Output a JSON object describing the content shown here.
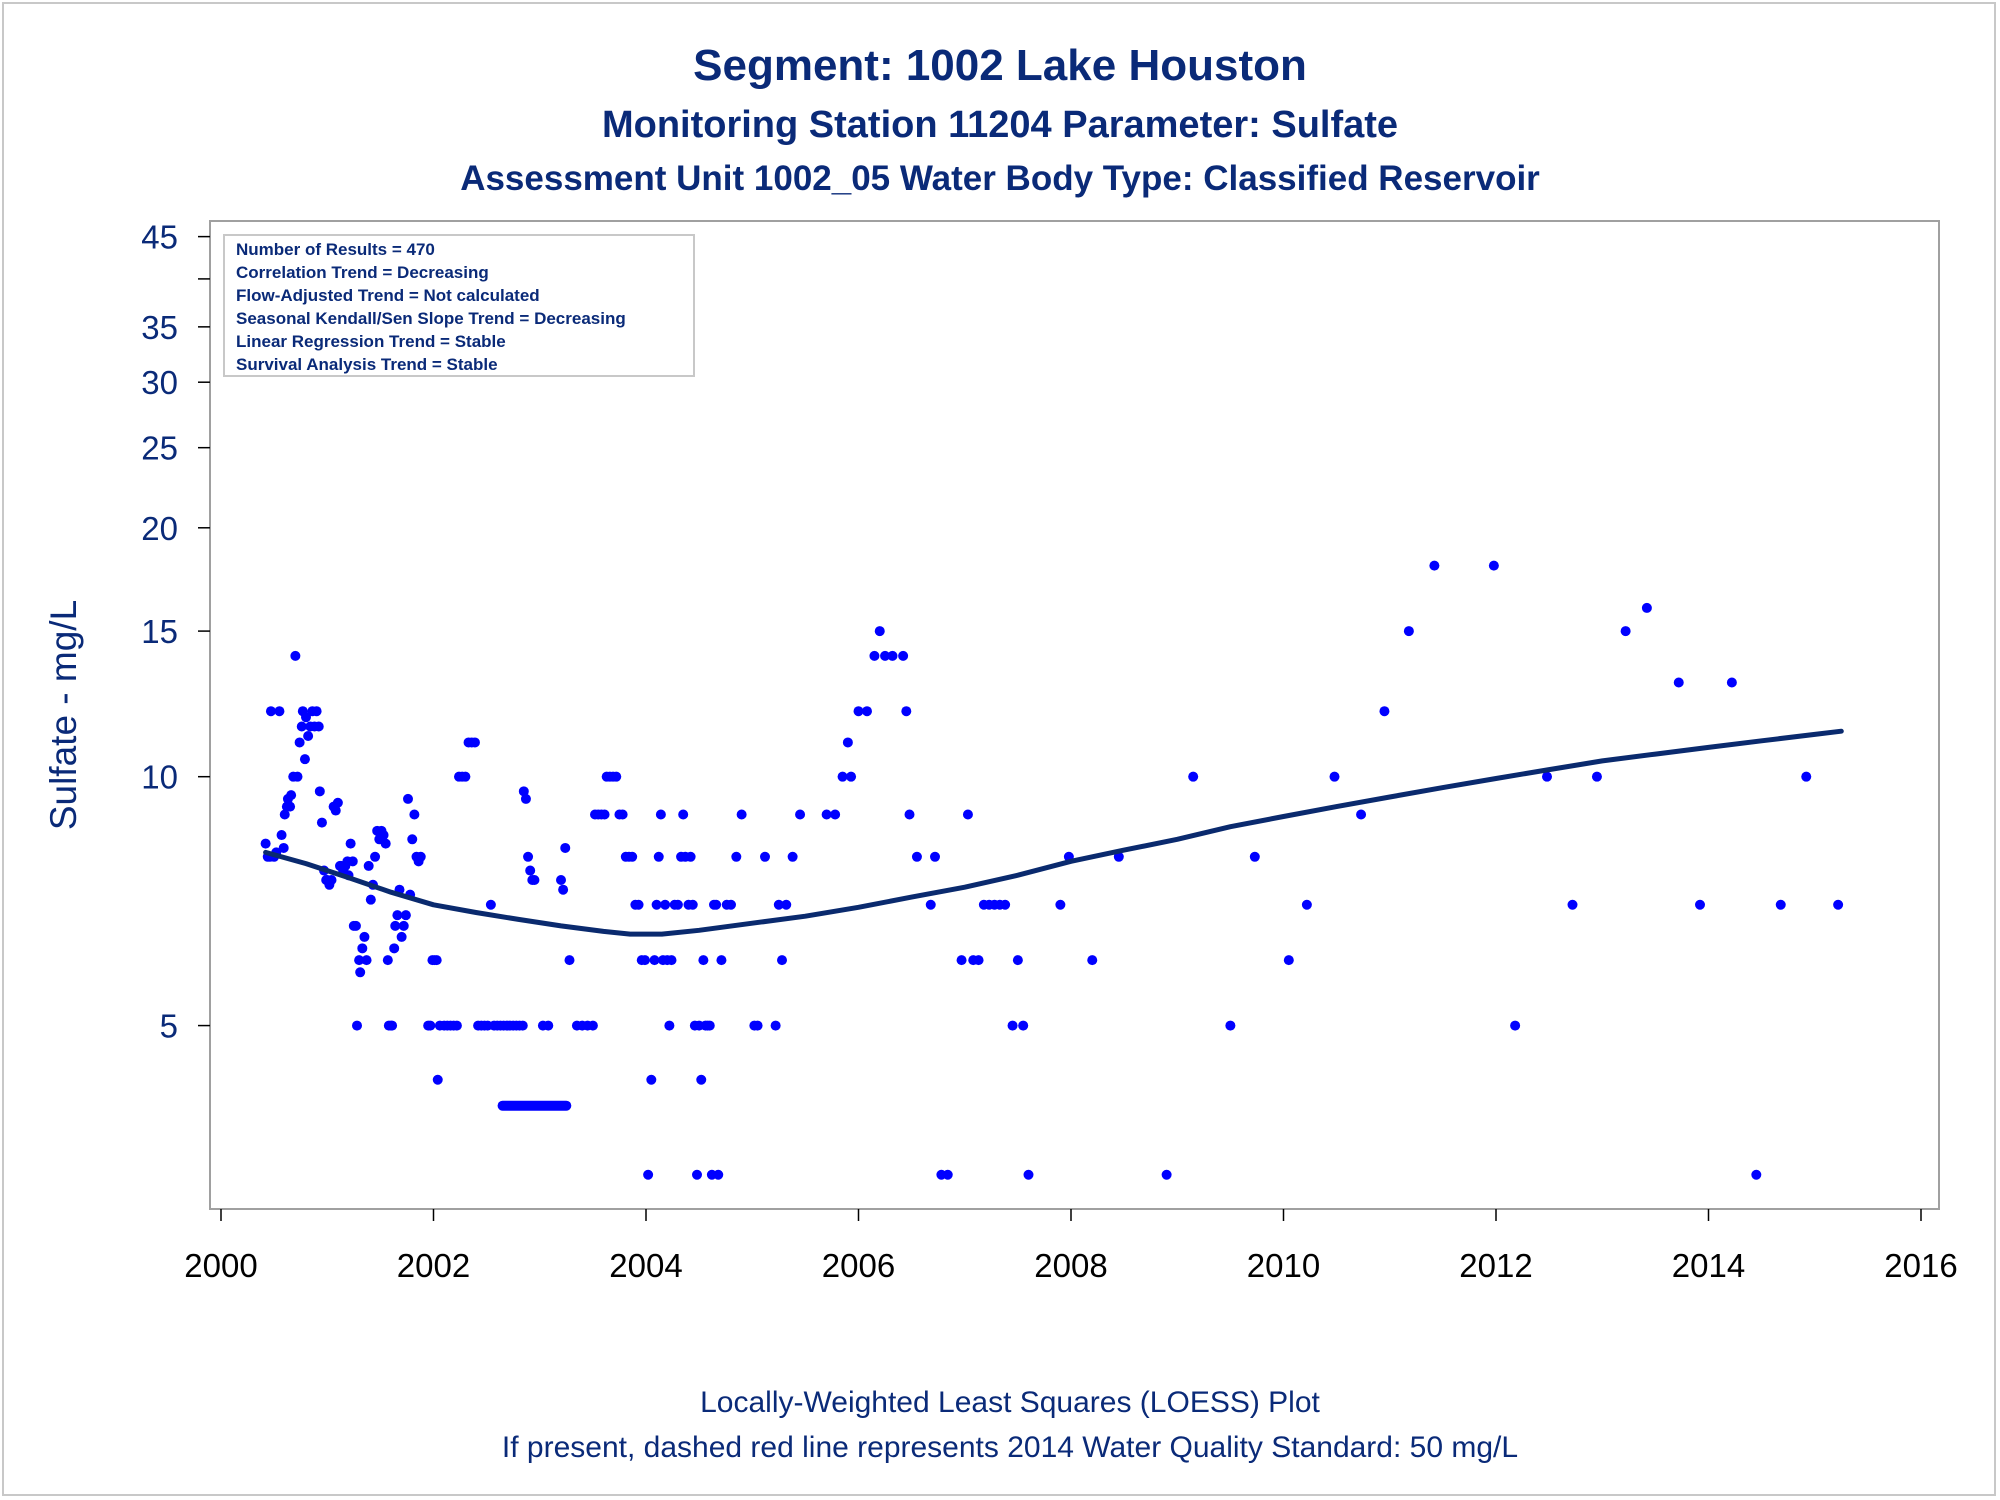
{
  "titles": {
    "line1": "Segment: 1002  Lake Houston",
    "line2": "Monitoring Station 11204 Parameter: Sulfate",
    "line3": "Assessment Unit 1002_05   Water Body Type: Classified Reservoir"
  },
  "footer": {
    "line1": "Locally-Weighted Least Squares (LOESS) Plot",
    "line2": "If present, dashed red line represents 2014 Water Quality Standard: 50    mg/L"
  },
  "stats": [
    "Number of Results = 470",
    "Correlation Trend = Decreasing",
    "Flow-Adjusted Trend = Not calculated",
    "Seasonal Kendall/Sen Slope Trend = Decreasing",
    "Linear Regression Trend = Stable",
    "Survival Analysis Trend = Stable"
  ],
  "colors": {
    "points": "#0000ff",
    "loess": "#0a2a6e",
    "text": "#0a2a78",
    "axis": "#a0a0a0"
  },
  "chart_data": {
    "type": "scatter",
    "ylabel": "Sulfate - mg/L",
    "xlabel": "",
    "yscale": "log",
    "xlim": [
      2000,
      2016
    ],
    "ylim": [
      3,
      47
    ],
    "xticks": [
      2000,
      2002,
      2004,
      2006,
      2008,
      2010,
      2012,
      2014,
      2016
    ],
    "yticks": [
      5,
      10,
      15,
      20,
      25,
      30,
      35,
      45
    ],
    "ytick_labels": [
      "5",
      "10",
      "15",
      "20",
      "25",
      "30",
      "35",
      "45"
    ],
    "yminor_ticks": [
      40
    ],
    "legend": "top-left inset",
    "grid": false,
    "points": [
      [
        2000.42,
        8.3
      ],
      [
        2000.44,
        8.0
      ],
      [
        2000.46,
        8.0
      ],
      [
        2000.47,
        12.0
      ],
      [
        2000.5,
        8.0
      ],
      [
        2000.52,
        8.1
      ],
      [
        2000.55,
        12.0
      ],
      [
        2000.57,
        8.5
      ],
      [
        2000.59,
        8.2
      ],
      [
        2000.6,
        9.0
      ],
      [
        2000.62,
        9.2
      ],
      [
        2000.63,
        9.4
      ],
      [
        2000.65,
        9.2
      ],
      [
        2000.66,
        9.5
      ],
      [
        2000.68,
        10.0
      ],
      [
        2000.7,
        14.0
      ],
      [
        2000.72,
        10.0
      ],
      [
        2000.74,
        11.0
      ],
      [
        2000.76,
        11.5
      ],
      [
        2000.77,
        12.0
      ],
      [
        2000.79,
        10.5
      ],
      [
        2000.8,
        11.8
      ],
      [
        2000.82,
        11.2
      ],
      [
        2000.84,
        11.5
      ],
      [
        2000.86,
        12.0
      ],
      [
        2000.88,
        11.5
      ],
      [
        2000.9,
        12.0
      ],
      [
        2000.92,
        11.5
      ],
      [
        2000.93,
        9.6
      ],
      [
        2000.95,
        8.8
      ],
      [
        2000.97,
        7.7
      ],
      [
        2000.99,
        7.5
      ],
      [
        2001.0,
        7.5
      ],
      [
        2001.02,
        7.4
      ],
      [
        2001.04,
        7.5
      ],
      [
        2001.06,
        9.2
      ],
      [
        2001.08,
        9.1
      ],
      [
        2001.1,
        9.3
      ],
      [
        2001.12,
        7.8
      ],
      [
        2001.13,
        7.8
      ],
      [
        2001.15,
        7.7
      ],
      [
        2001.17,
        7.8
      ],
      [
        2001.19,
        7.9
      ],
      [
        2001.2,
        7.6
      ],
      [
        2001.22,
        8.3
      ],
      [
        2001.24,
        7.9
      ],
      [
        2001.25,
        6.6
      ],
      [
        2001.27,
        6.6
      ],
      [
        2001.28,
        5.0
      ],
      [
        2001.3,
        6.0
      ],
      [
        2001.31,
        5.8
      ],
      [
        2001.33,
        6.2
      ],
      [
        2001.35,
        6.4
      ],
      [
        2001.37,
        6.0
      ],
      [
        2001.39,
        7.8
      ],
      [
        2001.41,
        7.1
      ],
      [
        2001.43,
        7.4
      ],
      [
        2001.45,
        8.0
      ],
      [
        2001.47,
        8.6
      ],
      [
        2001.49,
        8.4
      ],
      [
        2001.51,
        8.6
      ],
      [
        2001.53,
        8.5
      ],
      [
        2001.55,
        8.3
      ],
      [
        2001.57,
        6.0
      ],
      [
        2001.58,
        5.0
      ],
      [
        2001.6,
        5.0
      ],
      [
        2001.61,
        5.0
      ],
      [
        2001.63,
        6.2
      ],
      [
        2001.64,
        6.6
      ],
      [
        2001.66,
        6.8
      ],
      [
        2001.68,
        7.3
      ],
      [
        2001.7,
        6.4
      ],
      [
        2001.72,
        6.6
      ],
      [
        2001.74,
        6.8
      ],
      [
        2001.76,
        9.4
      ],
      [
        2001.78,
        7.2
      ],
      [
        2001.8,
        8.4
      ],
      [
        2001.82,
        9.0
      ],
      [
        2001.84,
        8.0
      ],
      [
        2001.86,
        7.9
      ],
      [
        2001.88,
        8.0
      ],
      [
        2001.95,
        5.0
      ],
      [
        2001.97,
        5.0
      ],
      [
        2001.99,
        6.0
      ],
      [
        2002.01,
        6.0
      ],
      [
        2002.03,
        6.0
      ],
      [
        2002.04,
        4.3
      ],
      [
        2002.06,
        5.0
      ],
      [
        2002.1,
        5.0
      ],
      [
        2002.13,
        5.0
      ],
      [
        2002.16,
        5.0
      ],
      [
        2002.19,
        5.0
      ],
      [
        2002.22,
        5.0
      ],
      [
        2002.24,
        10.0
      ],
      [
        2002.27,
        10.0
      ],
      [
        2002.3,
        10.0
      ],
      [
        2002.33,
        11.0
      ],
      [
        2002.36,
        11.0
      ],
      [
        2002.39,
        11.0
      ],
      [
        2002.42,
        5.0
      ],
      [
        2002.45,
        5.0
      ],
      [
        2002.48,
        5.0
      ],
      [
        2002.51,
        5.0
      ],
      [
        2002.54,
        7.0
      ],
      [
        2002.57,
        5.0
      ],
      [
        2002.6,
        5.0
      ],
      [
        2002.63,
        5.0
      ],
      [
        2002.66,
        5.0
      ],
      [
        2002.69,
        5.0
      ],
      [
        2002.72,
        5.0
      ],
      [
        2002.75,
        5.0
      ],
      [
        2002.78,
        5.0
      ],
      [
        2002.81,
        5.0
      ],
      [
        2002.84,
        5.0
      ],
      [
        2002.85,
        9.6
      ],
      [
        2002.87,
        9.4
      ],
      [
        2002.89,
        8.0
      ],
      [
        2002.91,
        7.7
      ],
      [
        2002.93,
        7.5
      ],
      [
        2002.95,
        7.5
      ],
      [
        2003.03,
        5.0
      ],
      [
        2003.08,
        5.0
      ],
      [
        2003.2,
        7.5
      ],
      [
        2003.22,
        7.3
      ],
      [
        2003.24,
        8.2
      ],
      [
        2003.28,
        6.0
      ],
      [
        2003.35,
        5.0
      ],
      [
        2003.4,
        5.0
      ],
      [
        2003.45,
        5.0
      ],
      [
        2003.5,
        5.0
      ],
      [
        2003.52,
        9.0
      ],
      [
        2003.55,
        9.0
      ],
      [
        2003.58,
        9.0
      ],
      [
        2003.61,
        9.0
      ],
      [
        2003.63,
        10.0
      ],
      [
        2003.66,
        10.0
      ],
      [
        2003.69,
        10.0
      ],
      [
        2003.72,
        10.0
      ],
      [
        2003.75,
        9.0
      ],
      [
        2003.78,
        9.0
      ],
      [
        2003.81,
        8.0
      ],
      [
        2003.84,
        8.0
      ],
      [
        2003.87,
        8.0
      ],
      [
        2003.9,
        7.0
      ],
      [
        2003.93,
        7.0
      ],
      [
        2003.96,
        6.0
      ],
      [
        2003.99,
        6.0
      ],
      [
        2004.02,
        3.3
      ],
      [
        2004.05,
        4.3
      ],
      [
        2004.08,
        6.0
      ],
      [
        2004.1,
        7.0
      ],
      [
        2004.12,
        8.0
      ],
      [
        2004.14,
        9.0
      ],
      [
        2004.16,
        6.0
      ],
      [
        2004.18,
        7.0
      ],
      [
        2004.2,
        6.0
      ],
      [
        2004.22,
        5.0
      ],
      [
        2004.24,
        6.0
      ],
      [
        2004.27,
        7.0
      ],
      [
        2004.3,
        7.0
      ],
      [
        2004.33,
        8.0
      ],
      [
        2004.35,
        9.0
      ],
      [
        2004.37,
        8.0
      ],
      [
        2004.4,
        7.0
      ],
      [
        2004.42,
        8.0
      ],
      [
        2004.44,
        7.0
      ],
      [
        2004.46,
        5.0
      ],
      [
        2004.48,
        3.3
      ],
      [
        2004.5,
        5.0
      ],
      [
        2004.52,
        4.3
      ],
      [
        2004.54,
        6.0
      ],
      [
        2004.56,
        5.0
      ],
      [
        2004.58,
        5.0
      ],
      [
        2004.6,
        5.0
      ],
      [
        2004.62,
        3.3
      ],
      [
        2004.64,
        7.0
      ],
      [
        2004.66,
        7.0
      ],
      [
        2004.68,
        3.3
      ],
      [
        2004.71,
        6.0
      ],
      [
        2004.76,
        7.0
      ],
      [
        2004.8,
        7.0
      ],
      [
        2004.85,
        8.0
      ],
      [
        2004.9,
        9.0
      ],
      [
        2005.02,
        5.0
      ],
      [
        2005.05,
        5.0
      ],
      [
        2005.12,
        8.0
      ],
      [
        2005.22,
        5.0
      ],
      [
        2005.25,
        7.0
      ],
      [
        2005.28,
        6.0
      ],
      [
        2005.32,
        7.0
      ],
      [
        2005.38,
        8.0
      ],
      [
        2005.45,
        9.0
      ],
      [
        2005.7,
        9.0
      ],
      [
        2005.78,
        9.0
      ],
      [
        2005.85,
        10.0
      ],
      [
        2005.9,
        11.0
      ],
      [
        2005.93,
        10.0
      ],
      [
        2006.0,
        12.0
      ],
      [
        2006.08,
        12.0
      ],
      [
        2006.15,
        14.0
      ],
      [
        2006.2,
        15.0
      ],
      [
        2006.25,
        14.0
      ],
      [
        2006.32,
        14.0
      ],
      [
        2006.42,
        14.0
      ],
      [
        2006.45,
        12.0
      ],
      [
        2006.48,
        9.0
      ],
      [
        2006.55,
        8.0
      ],
      [
        2006.68,
        7.0
      ],
      [
        2006.72,
        8.0
      ],
      [
        2006.78,
        3.3
      ],
      [
        2006.84,
        3.3
      ],
      [
        2006.97,
        6.0
      ],
      [
        2007.03,
        9.0
      ],
      [
        2007.08,
        6.0
      ],
      [
        2007.13,
        6.0
      ],
      [
        2007.18,
        7.0
      ],
      [
        2007.23,
        7.0
      ],
      [
        2007.28,
        7.0
      ],
      [
        2007.33,
        7.0
      ],
      [
        2007.38,
        7.0
      ],
      [
        2007.45,
        5.0
      ],
      [
        2007.5,
        6.0
      ],
      [
        2007.55,
        5.0
      ],
      [
        2007.6,
        3.3
      ],
      [
        2007.9,
        7.0
      ],
      [
        2007.98,
        8.0
      ],
      [
        2008.2,
        6.0
      ],
      [
        2008.45,
        8.0
      ],
      [
        2008.9,
        3.3
      ],
      [
        2009.15,
        10.0
      ],
      [
        2009.5,
        5.0
      ],
      [
        2009.73,
        8.0
      ],
      [
        2010.05,
        6.0
      ],
      [
        2010.22,
        7.0
      ],
      [
        2010.48,
        10.0
      ],
      [
        2010.73,
        9.0
      ],
      [
        2010.95,
        12.0
      ],
      [
        2011.18,
        15.0
      ],
      [
        2011.42,
        18.0
      ],
      [
        2011.98,
        18.0
      ],
      [
        2012.18,
        5.0
      ],
      [
        2012.48,
        10.0
      ],
      [
        2012.72,
        7.0
      ],
      [
        2012.95,
        10.0
      ],
      [
        2013.22,
        15.0
      ],
      [
        2013.42,
        16.0
      ],
      [
        2013.72,
        13.0
      ],
      [
        2013.92,
        7.0
      ],
      [
        2014.22,
        13.0
      ],
      [
        2014.45,
        3.3
      ],
      [
        2014.68,
        7.0
      ],
      [
        2014.92,
        10.0
      ],
      [
        2015.22,
        7.0
      ]
    ],
    "segments": [
      [
        2002.65,
        2003.25,
        4.0
      ]
    ],
    "loess": [
      [
        2000.42,
        8.1
      ],
      [
        2000.8,
        7.85
      ],
      [
        2001.2,
        7.55
      ],
      [
        2001.6,
        7.25
      ],
      [
        2002.0,
        7.0
      ],
      [
        2002.4,
        6.85
      ],
      [
        2002.8,
        6.72
      ],
      [
        2003.2,
        6.6
      ],
      [
        2003.6,
        6.5
      ],
      [
        2003.85,
        6.45
      ],
      [
        2004.15,
        6.45
      ],
      [
        2004.5,
        6.52
      ],
      [
        2005.0,
        6.65
      ],
      [
        2005.5,
        6.78
      ],
      [
        2006.0,
        6.95
      ],
      [
        2006.5,
        7.15
      ],
      [
        2007.0,
        7.35
      ],
      [
        2007.5,
        7.6
      ],
      [
        2008.0,
        7.9
      ],
      [
        2008.5,
        8.15
      ],
      [
        2009.0,
        8.4
      ],
      [
        2009.5,
        8.7
      ],
      [
        2010.0,
        8.95
      ],
      [
        2010.5,
        9.2
      ],
      [
        2011.0,
        9.45
      ],
      [
        2011.5,
        9.7
      ],
      [
        2012.0,
        9.95
      ],
      [
        2012.5,
        10.2
      ],
      [
        2013.0,
        10.45
      ],
      [
        2013.5,
        10.65
      ],
      [
        2014.0,
        10.85
      ],
      [
        2014.5,
        11.05
      ],
      [
        2015.0,
        11.25
      ],
      [
        2015.25,
        11.35
      ]
    ]
  }
}
